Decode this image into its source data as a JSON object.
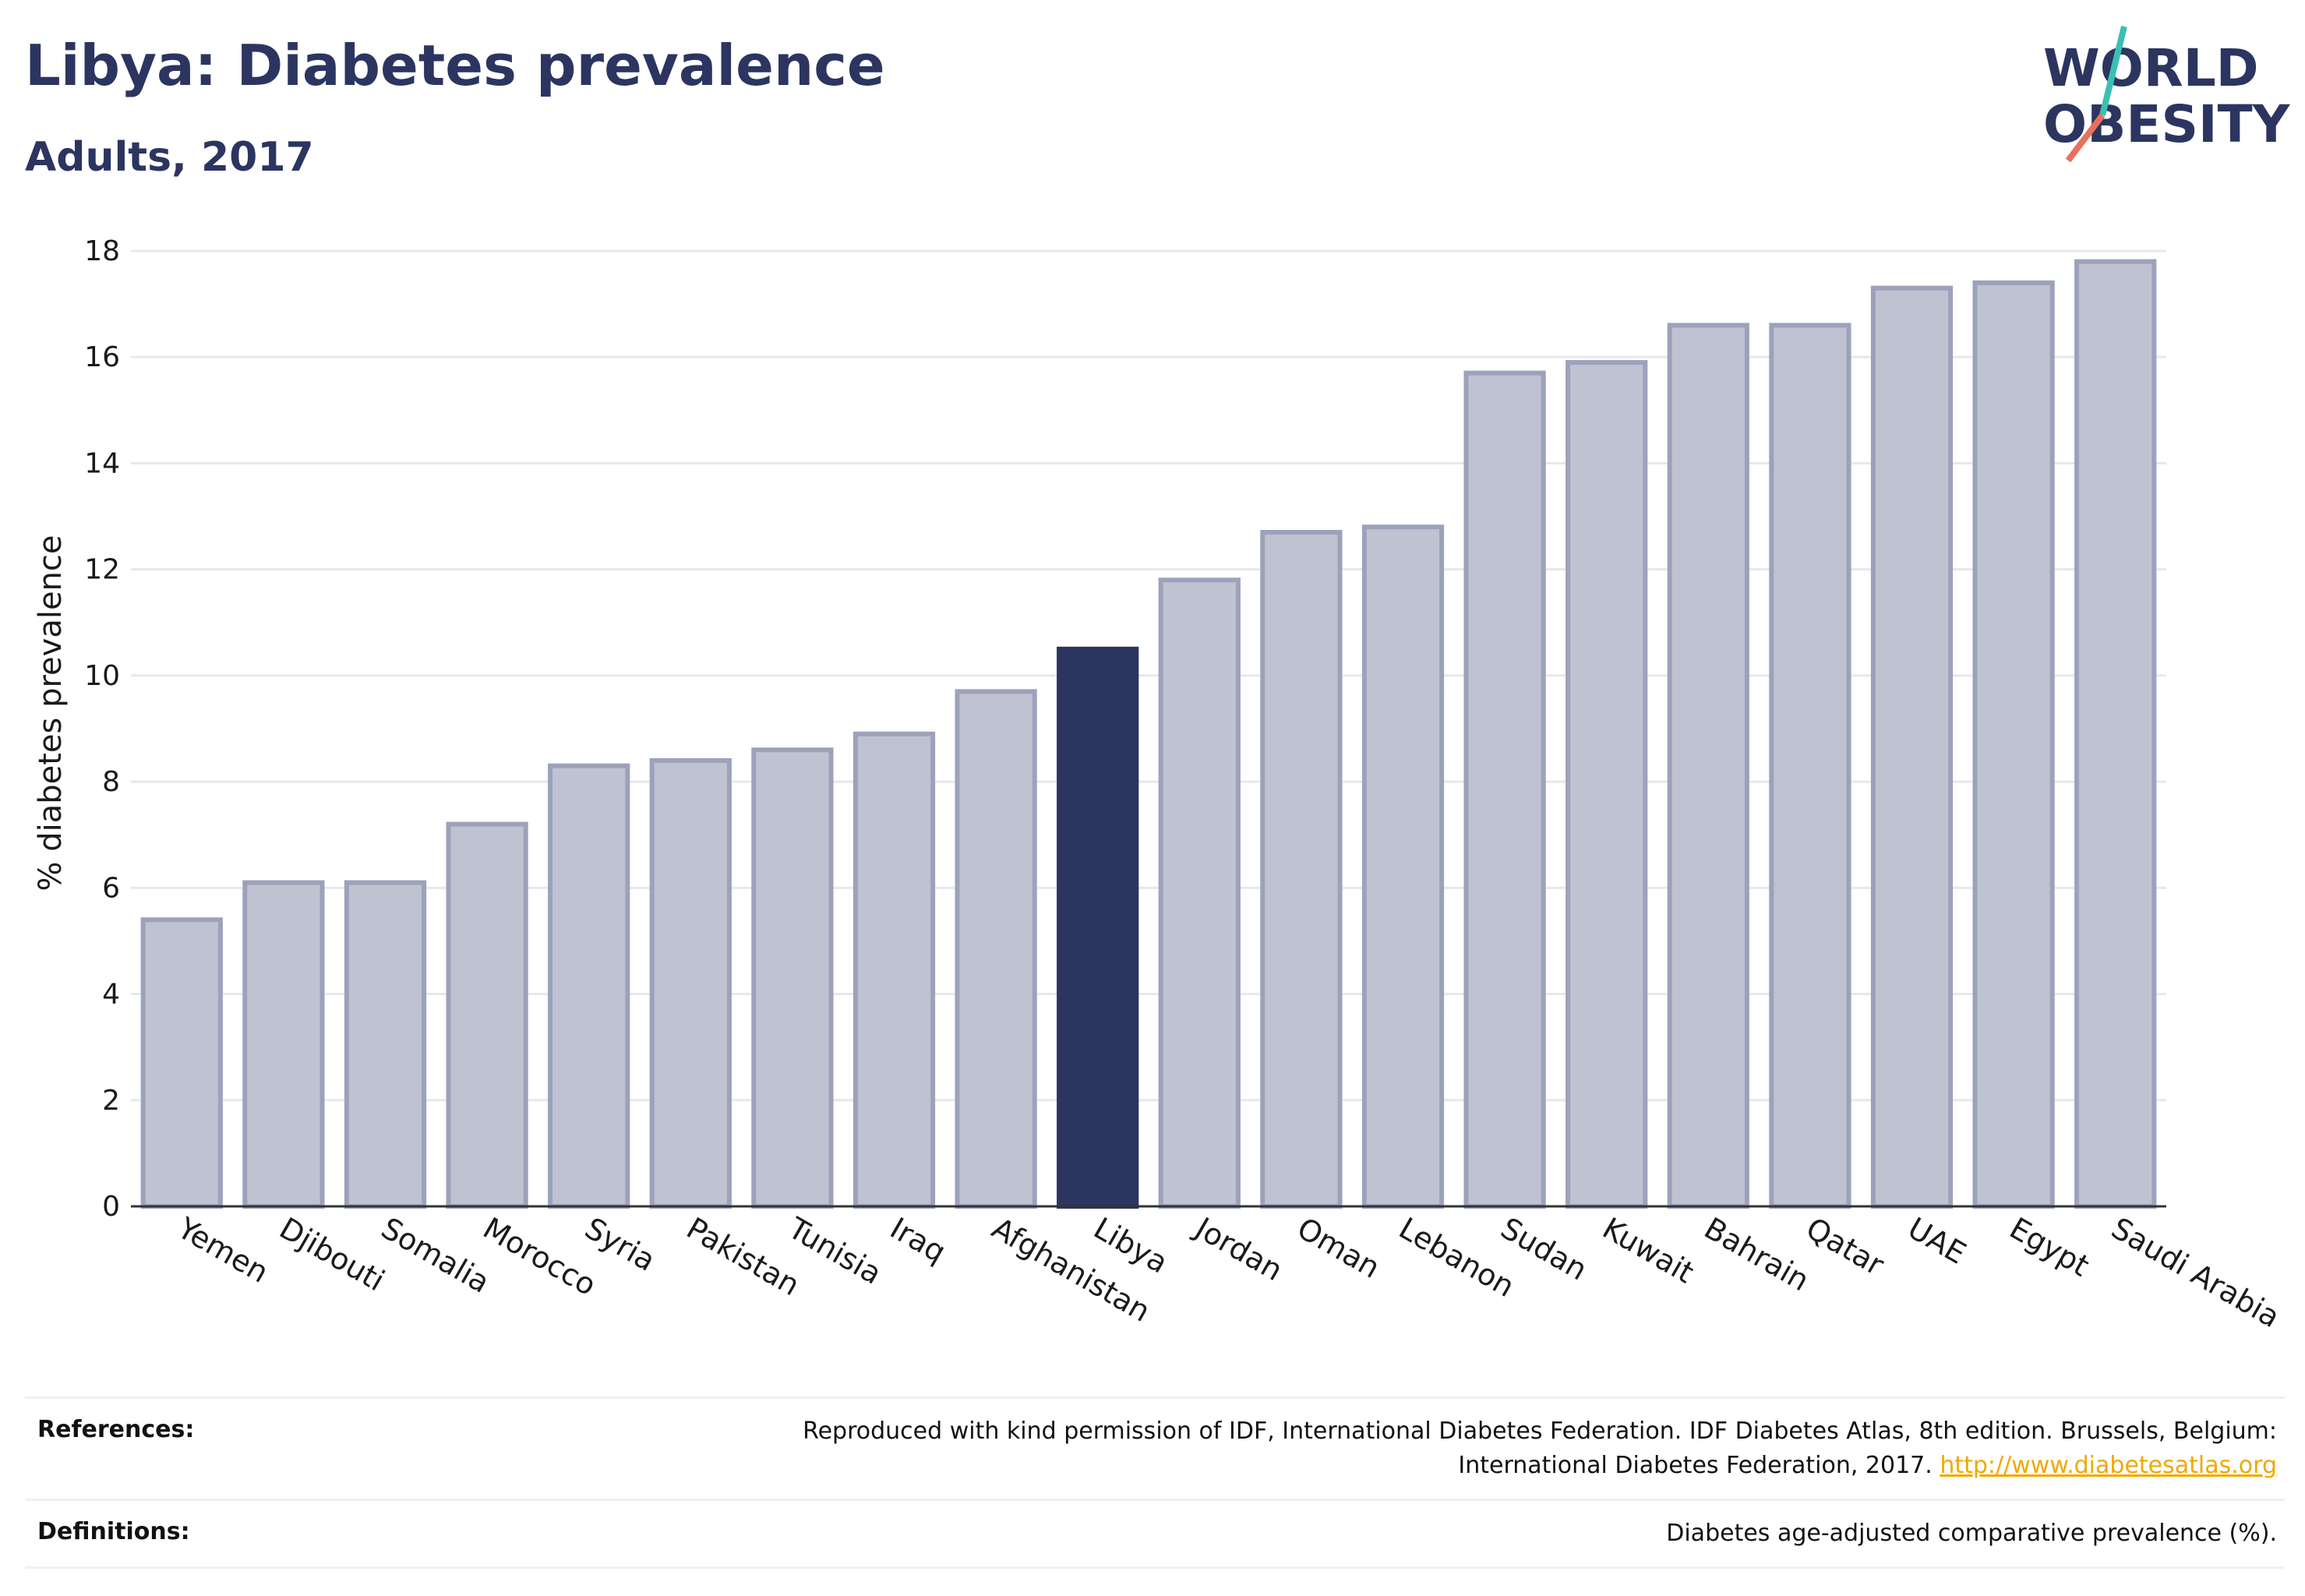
{
  "header": {
    "title": "Libya: Diabetes prevalence",
    "subtitle": "Adults, 2017"
  },
  "logo": {
    "line1": "WORLD",
    "line2": "OBESITY",
    "accent_teal": "#3bbfb5",
    "accent_coral": "#e8705d"
  },
  "colors": {
    "highlight_bar": "#2b3560",
    "other_bar_fill": "#bfc2d0",
    "other_bar_stroke": "#9ca2bb",
    "link": "#f0a800"
  },
  "chart_data": {
    "type": "bar",
    "ylabel": "% diabetes prevalence",
    "ylim": [
      0,
      18
    ],
    "yticks": [
      "0",
      "2",
      "4",
      "6",
      "8",
      "10",
      "12",
      "14",
      "16",
      "18"
    ],
    "grid": true,
    "highlight": "Libya",
    "categories": [
      "Yemen",
      "Djibouti",
      "Somalia",
      "Morocco",
      "Syria",
      "Pakistan",
      "Tunisia",
      "Iraq",
      "Afghanistan",
      "Libya",
      "Jordan",
      "Oman",
      "Lebanon",
      "Sudan",
      "Kuwait",
      "Bahrain",
      "Qatar",
      "UAE",
      "Egypt",
      "Saudi Arabia"
    ],
    "values": [
      5.4,
      6.1,
      6.1,
      7.2,
      8.3,
      8.4,
      8.6,
      8.9,
      9.7,
      10.5,
      11.8,
      12.7,
      12.8,
      15.7,
      15.9,
      16.6,
      16.6,
      17.3,
      17.4,
      17.8
    ]
  },
  "footer": {
    "references_label": "References:",
    "references_text": "Reproduced with kind permission of IDF, International Diabetes Federation. IDF Diabetes Atlas, 8th edition. Brussels, Belgium:",
    "references_text2": "International Diabetes Federation, 2017.",
    "references_link": "http://www.diabetesatlas.org",
    "definitions_label": "Definitions:",
    "definitions_text": "Diabetes age-adjusted comparative prevalence (%)."
  }
}
